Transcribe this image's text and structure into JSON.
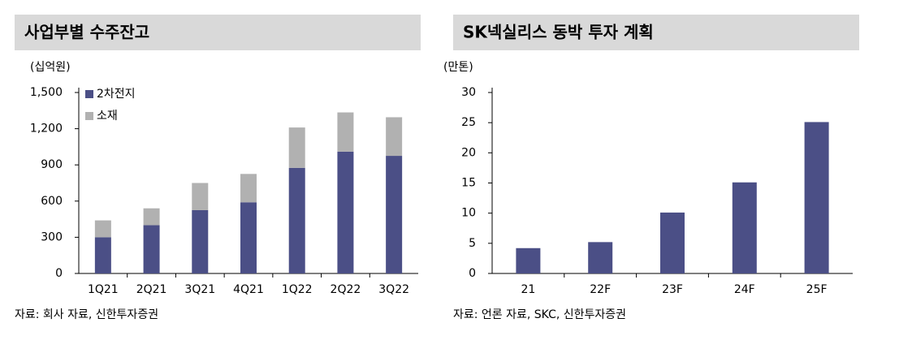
{
  "chart_data": [
    {
      "type": "bar",
      "stacked": true,
      "title": "사업부별 수주잔고",
      "y_label": "(십억원)",
      "source": "자료: 회사 자료, 신한투자증권",
      "categories": [
        "1Q21",
        "2Q21",
        "3Q21",
        "4Q21",
        "1Q22",
        "2Q22",
        "3Q22"
      ],
      "series": [
        {
          "name": "2차전지",
          "color": "#4b4f86",
          "values": [
            300,
            400,
            525,
            590,
            875,
            1010,
            975
          ]
        },
        {
          "name": "소재",
          "color": "#b1b1b1",
          "values": [
            140,
            140,
            225,
            235,
            335,
            325,
            320
          ]
        }
      ],
      "ylim": [
        0,
        1500
      ],
      "yticks": [
        0,
        300,
        600,
        900,
        {
          "value": 1200,
          "label": "1,200"
        },
        {
          "value": 1500,
          "label": "1,500"
        }
      ],
      "legend": "upper-left"
    },
    {
      "type": "bar",
      "title": "SK넥실리스 동박 투자 계획",
      "y_label": "(만톤)",
      "source": "자료: 언론 자료, SKC, 신한투자증권",
      "categories": [
        "21",
        "22F",
        "23F",
        "24F",
        "25F"
      ],
      "values": [
        4.2,
        5.2,
        10.1,
        15.1,
        25.1
      ],
      "color": "#4b4f86",
      "ylim": [
        0,
        30
      ],
      "yticks": [
        0,
        5,
        10,
        15,
        20,
        25,
        30
      ]
    }
  ]
}
